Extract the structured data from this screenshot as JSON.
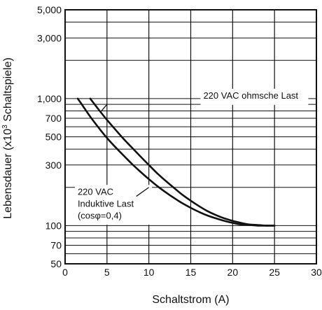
{
  "chart_data": {
    "type": "line",
    "xlabel": "Schaltstrom (A)",
    "ylabel": {
      "prefix": "Lebensdauer (x10",
      "superscript": "3",
      "suffix": " Schaltspiele)"
    },
    "xlim": [
      0,
      30
    ],
    "ylim": [
      50,
      5000
    ],
    "yscale": "log",
    "grid": true,
    "x_ticks": [
      0,
      5,
      10,
      15,
      20,
      25,
      30
    ],
    "x_tick_labels": [
      "0",
      "5",
      "10",
      "15",
      "20",
      "25",
      "30"
    ],
    "y_ticks": [
      50,
      70,
      100,
      300,
      500,
      700,
      1000,
      3000,
      5000
    ],
    "y_tick_labels": [
      "50",
      "70",
      "100",
      "300",
      "500",
      "700",
      "1,000",
      "3,000",
      "5,000"
    ],
    "series": [
      {
        "x": [
          3,
          4,
          5,
          6,
          7,
          8,
          9,
          10,
          11,
          12,
          13,
          14,
          15,
          16,
          17,
          18,
          19,
          20,
          21,
          22,
          23,
          24,
          25
        ],
        "y": [
          1000,
          820,
          680,
          570,
          480,
          410,
          350,
          300,
          258,
          225,
          198,
          175,
          157,
          142,
          130,
          121,
          114,
          109,
          105,
          102,
          101,
          100,
          100
        ]
      },
      {
        "x": [
          1.5,
          2,
          3,
          4,
          5,
          6,
          7,
          8,
          9,
          10,
          11,
          12,
          13,
          14,
          15,
          16,
          17,
          18,
          19,
          20,
          21,
          22,
          23,
          24,
          25
        ],
        "y": [
          1000,
          900,
          720,
          590,
          490,
          415,
          355,
          305,
          265,
          232,
          205,
          183,
          165,
          150,
          138,
          128,
          120,
          114,
          109,
          105,
          102,
          101,
          100,
          100,
          100
        ]
      }
    ],
    "annotations": [
      {
        "lines": [
          "220 VAC ohmsche Last"
        ],
        "x": 16.5,
        "y": 1000
      },
      {
        "lines": [
          "220 VAC",
          "Induktive Last",
          "(cosφ=0,4)"
        ],
        "x": 1.5,
        "y": 175
      }
    ],
    "annotation_pointers": [
      {
        "from": [
          5.0,
          900
        ],
        "to": [
          4.2,
          780
        ]
      },
      {
        "from": [
          8.5,
          170
        ],
        "to": [
          10.0,
          200
        ]
      }
    ]
  }
}
